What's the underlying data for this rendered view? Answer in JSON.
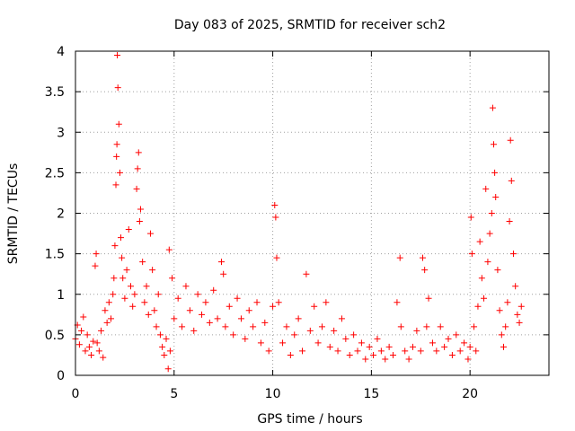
{
  "chart_data": {
    "type": "scatter",
    "title": "Day 083 of 2025, SRMTID for receiver sch2",
    "xlabel": "GPS time / hours",
    "ylabel": "SRMTID / TECUs",
    "xlim": [
      0,
      24
    ],
    "ylim": [
      0,
      4
    ],
    "xticks": [
      "0",
      "5",
      "10",
      "15",
      "20"
    ],
    "yticks": [
      "0",
      "0.5",
      "1",
      "1.5",
      "2",
      "2.5",
      "3",
      "3.5",
      "4"
    ],
    "grid": true,
    "marker": "+",
    "series_color": "#ff0000",
    "series": [
      {
        "name": "SRMTID",
        "points": [
          [
            0.0,
            0.45
          ],
          [
            0.1,
            0.62
          ],
          [
            0.2,
            0.38
          ],
          [
            0.3,
            0.55
          ],
          [
            0.4,
            0.72
          ],
          [
            0.5,
            0.3
          ],
          [
            0.6,
            0.5
          ],
          [
            0.7,
            0.35
          ],
          [
            0.8,
            0.25
          ],
          [
            0.9,
            0.42
          ],
          [
            1.0,
            1.35
          ],
          [
            1.05,
            1.5
          ],
          [
            1.1,
            0.4
          ],
          [
            1.2,
            0.3
          ],
          [
            1.3,
            0.55
          ],
          [
            1.4,
            0.22
          ],
          [
            1.5,
            0.8
          ],
          [
            1.6,
            0.65
          ],
          [
            1.7,
            0.9
          ],
          [
            1.8,
            0.7
          ],
          [
            1.9,
            1.0
          ],
          [
            1.95,
            1.2
          ],
          [
            2.0,
            1.6
          ],
          [
            2.05,
            2.35
          ],
          [
            2.08,
            2.7
          ],
          [
            2.1,
            2.85
          ],
          [
            2.12,
            3.95
          ],
          [
            2.15,
            3.55
          ],
          [
            2.2,
            3.1
          ],
          [
            2.25,
            2.5
          ],
          [
            2.3,
            1.7
          ],
          [
            2.35,
            1.45
          ],
          [
            2.4,
            1.2
          ],
          [
            2.5,
            0.95
          ],
          [
            2.6,
            1.3
          ],
          [
            2.7,
            1.8
          ],
          [
            2.8,
            1.1
          ],
          [
            2.9,
            0.85
          ],
          [
            3.0,
            1.0
          ],
          [
            3.1,
            2.3
          ],
          [
            3.15,
            2.55
          ],
          [
            3.2,
            2.75
          ],
          [
            3.25,
            1.9
          ],
          [
            3.3,
            2.05
          ],
          [
            3.4,
            1.4
          ],
          [
            3.5,
            0.9
          ],
          [
            3.6,
            1.1
          ],
          [
            3.7,
            0.75
          ],
          [
            3.8,
            1.75
          ],
          [
            3.9,
            1.3
          ],
          [
            4.0,
            0.8
          ],
          [
            4.1,
            0.6
          ],
          [
            4.2,
            1.0
          ],
          [
            4.3,
            0.5
          ],
          [
            4.4,
            0.35
          ],
          [
            4.5,
            0.25
          ],
          [
            4.6,
            0.45
          ],
          [
            4.7,
            0.08
          ],
          [
            4.75,
            1.55
          ],
          [
            4.8,
            0.3
          ],
          [
            4.9,
            1.2
          ],
          [
            5.0,
            0.7
          ],
          [
            5.2,
            0.95
          ],
          [
            5.4,
            0.6
          ],
          [
            5.6,
            1.1
          ],
          [
            5.8,
            0.8
          ],
          [
            6.0,
            0.55
          ],
          [
            6.2,
            1.0
          ],
          [
            6.4,
            0.75
          ],
          [
            6.6,
            0.9
          ],
          [
            6.8,
            0.65
          ],
          [
            7.0,
            1.05
          ],
          [
            7.2,
            0.7
          ],
          [
            7.4,
            1.4
          ],
          [
            7.5,
            1.25
          ],
          [
            7.6,
            0.6
          ],
          [
            7.8,
            0.85
          ],
          [
            8.0,
            0.5
          ],
          [
            8.2,
            0.95
          ],
          [
            8.4,
            0.7
          ],
          [
            8.6,
            0.45
          ],
          [
            8.8,
            0.8
          ],
          [
            9.0,
            0.6
          ],
          [
            9.2,
            0.9
          ],
          [
            9.4,
            0.4
          ],
          [
            9.6,
            0.65
          ],
          [
            9.8,
            0.3
          ],
          [
            10.0,
            0.85
          ],
          [
            10.1,
            2.1
          ],
          [
            10.15,
            1.95
          ],
          [
            10.2,
            1.45
          ],
          [
            10.3,
            0.9
          ],
          [
            10.5,
            0.4
          ],
          [
            10.7,
            0.6
          ],
          [
            10.9,
            0.25
          ],
          [
            11.1,
            0.5
          ],
          [
            11.3,
            0.7
          ],
          [
            11.5,
            0.3
          ],
          [
            11.7,
            1.25
          ],
          [
            11.9,
            0.55
          ],
          [
            12.1,
            0.85
          ],
          [
            12.3,
            0.4
          ],
          [
            12.5,
            0.6
          ],
          [
            12.7,
            0.9
          ],
          [
            12.9,
            0.35
          ],
          [
            13.1,
            0.55
          ],
          [
            13.3,
            0.3
          ],
          [
            13.5,
            0.7
          ],
          [
            13.7,
            0.45
          ],
          [
            13.9,
            0.25
          ],
          [
            14.1,
            0.5
          ],
          [
            14.3,
            0.3
          ],
          [
            14.5,
            0.4
          ],
          [
            14.7,
            0.2
          ],
          [
            14.9,
            0.35
          ],
          [
            15.1,
            0.25
          ],
          [
            15.3,
            0.45
          ],
          [
            15.5,
            0.3
          ],
          [
            15.7,
            0.2
          ],
          [
            15.9,
            0.35
          ],
          [
            16.1,
            0.25
          ],
          [
            16.3,
            0.9
          ],
          [
            16.45,
            1.45
          ],
          [
            16.5,
            0.6
          ],
          [
            16.7,
            0.3
          ],
          [
            16.9,
            0.2
          ],
          [
            17.1,
            0.35
          ],
          [
            17.3,
            0.55
          ],
          [
            17.5,
            0.3
          ],
          [
            17.6,
            1.45
          ],
          [
            17.7,
            1.3
          ],
          [
            17.8,
            0.6
          ],
          [
            17.9,
            0.95
          ],
          [
            18.1,
            0.4
          ],
          [
            18.3,
            0.3
          ],
          [
            18.5,
            0.6
          ],
          [
            18.7,
            0.35
          ],
          [
            18.9,
            0.45
          ],
          [
            19.1,
            0.25
          ],
          [
            19.3,
            0.5
          ],
          [
            19.5,
            0.3
          ],
          [
            19.7,
            0.4
          ],
          [
            19.9,
            0.2
          ],
          [
            20.0,
            0.35
          ],
          [
            20.05,
            1.95
          ],
          [
            20.1,
            1.5
          ],
          [
            20.2,
            0.6
          ],
          [
            20.3,
            0.3
          ],
          [
            20.4,
            0.85
          ],
          [
            20.5,
            1.65
          ],
          [
            20.6,
            1.2
          ],
          [
            20.7,
            0.95
          ],
          [
            20.8,
            2.3
          ],
          [
            20.9,
            1.4
          ],
          [
            21.0,
            1.75
          ],
          [
            21.1,
            2.0
          ],
          [
            21.15,
            3.3
          ],
          [
            21.2,
            2.85
          ],
          [
            21.25,
            2.5
          ],
          [
            21.3,
            2.2
          ],
          [
            21.4,
            1.3
          ],
          [
            21.5,
            0.8
          ],
          [
            21.6,
            0.5
          ],
          [
            21.7,
            0.35
          ],
          [
            21.8,
            0.6
          ],
          [
            21.9,
            0.9
          ],
          [
            22.0,
            1.9
          ],
          [
            22.05,
            2.9
          ],
          [
            22.1,
            2.4
          ],
          [
            22.2,
            1.5
          ],
          [
            22.3,
            1.1
          ],
          [
            22.4,
            0.75
          ],
          [
            22.5,
            0.65
          ],
          [
            22.6,
            0.85
          ]
        ]
      }
    ]
  }
}
